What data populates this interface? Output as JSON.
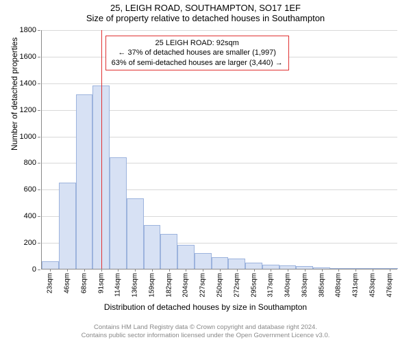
{
  "chart": {
    "type": "histogram",
    "title_line1": "25, LEIGH ROAD, SOUTHAMPTON, SO17 1EF",
    "title_line2": "Size of property relative to detached houses in Southampton",
    "x_axis_title": "Distribution of detached houses by size in Southampton",
    "y_axis_title": "Number of detached properties",
    "categories": [
      "23sqm",
      "46sqm",
      "68sqm",
      "91sqm",
      "114sqm",
      "136sqm",
      "159sqm",
      "182sqm",
      "204sqm",
      "227sqm",
      "250sqm",
      "272sqm",
      "295sqm",
      "317sqm",
      "340sqm",
      "363sqm",
      "385sqm",
      "408sqm",
      "431sqm",
      "453sqm",
      "476sqm"
    ],
    "values": [
      55,
      650,
      1310,
      1380,
      840,
      530,
      330,
      260,
      180,
      120,
      90,
      75,
      45,
      30,
      25,
      20,
      10,
      5,
      0,
      0,
      5
    ],
    "bar_fill": "#d7e1f4",
    "bar_stroke": "#9cb3dd",
    "background_color": "#ffffff",
    "grid_color": "#d8d8d8",
    "ylim": [
      0,
      1800
    ],
    "ytick_step": 200,
    "marker": {
      "x_value_sqm": 92,
      "color": "#e03030",
      "box_border": "#e03030",
      "box_bg": "#ffffff",
      "lines": [
        "25 LEIGH ROAD: 92sqm",
        "← 37% of detached houses are smaller (1,997)",
        "63% of semi-detached houses are larger (3,440) →"
      ]
    }
  },
  "footer": {
    "line1": "Contains HM Land Registry data © Crown copyright and database right 2024.",
    "line2": "Contains public sector information licensed under the Open Government Licence v3.0."
  }
}
